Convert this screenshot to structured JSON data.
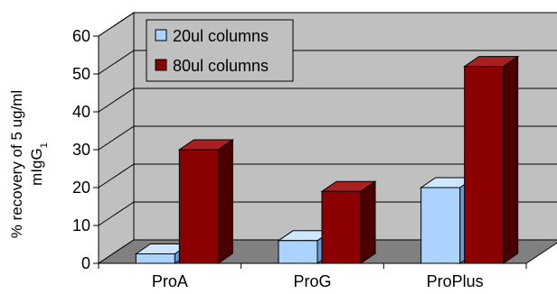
{
  "chart_data": {
    "type": "bar",
    "categories": [
      "ProA",
      "ProG",
      "ProPlus"
    ],
    "series": [
      {
        "name": "20ul columns",
        "values": [
          2.5,
          6,
          20
        ],
        "color": "#aad4ff",
        "side": "#6a9ad0",
        "top": "#cfe6ff"
      },
      {
        "name": "80ul columns",
        "values": [
          30,
          19,
          52
        ],
        "color": "#8b0000",
        "side": "#4a0000",
        "top": "#a82020"
      }
    ],
    "ylim": [
      0,
      60
    ],
    "yticks": [
      0,
      10,
      20,
      30,
      40,
      50,
      60
    ],
    "ylabel_line1": "% recovery of 5 ug/ml",
    "ylabel_line2": "mIgG",
    "ylabel_sub": "1",
    "xlabel": "",
    "grid": true,
    "legend_position": "top-left",
    "wall_color": "#c0c0c0",
    "floor_color": "#808080"
  }
}
